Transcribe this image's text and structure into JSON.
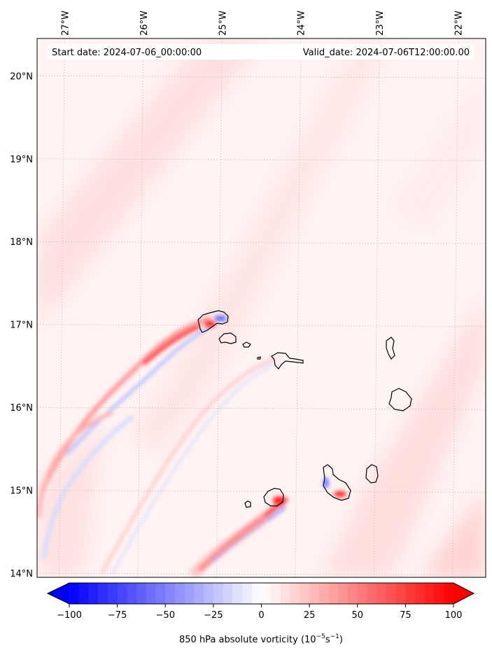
{
  "figure": {
    "start_date_label": "Start date: 2024-07-06_00:00:00",
    "valid_date_label": "Valid_date: 2024-07-06T12:00:00.00"
  },
  "map": {
    "extent": {
      "lon_min": -27.35,
      "lon_max": -21.65,
      "lat_min": 13.95,
      "lat_max": 20.45
    },
    "lon_ticks": [
      {
        "lon": -27,
        "label": "27°W"
      },
      {
        "lon": -26,
        "label": "26°W"
      },
      {
        "lon": -25,
        "label": "25°W"
      },
      {
        "lon": -24,
        "label": "24°W"
      },
      {
        "lon": -23,
        "label": "23°W"
      },
      {
        "lon": -22,
        "label": "22°W"
      }
    ],
    "lat_ticks": [
      {
        "lat": 20,
        "label": "20°N"
      },
      {
        "lat": 19,
        "label": "19°N"
      },
      {
        "lat": 18,
        "label": "18°N"
      },
      {
        "lat": 17,
        "label": "17°N"
      },
      {
        "lat": 16,
        "label": "16°N"
      },
      {
        "lat": 15,
        "label": "15°N"
      },
      {
        "lat": 14,
        "label": "14°N"
      }
    ],
    "field_name": "850 hPa absolute vorticity",
    "islands": [
      {
        "name": "Santo Antão",
        "lon": -25.15,
        "lat": 17.05
      },
      {
        "name": "São Vicente",
        "lon": -24.98,
        "lat": 16.85
      },
      {
        "name": "Santa Luzia",
        "lon": -24.75,
        "lat": 16.76
      },
      {
        "name": "Branco",
        "lon": -24.65,
        "lat": 16.66
      },
      {
        "name": "São Nicolau",
        "lon": -24.25,
        "lat": 16.6
      },
      {
        "name": "Sal",
        "lon": -22.93,
        "lat": 16.72
      },
      {
        "name": "Boa Vista",
        "lon": -22.81,
        "lat": 16.1
      },
      {
        "name": "Maio",
        "lon": -23.18,
        "lat": 15.22
      },
      {
        "name": "Santiago",
        "lon": -23.65,
        "lat": 15.08
      },
      {
        "name": "Fogo",
        "lon": -24.38,
        "lat": 14.93
      },
      {
        "name": "Brava",
        "lon": -24.72,
        "lat": 14.85
      }
    ]
  },
  "colorbar": {
    "min": -100,
    "max": 100,
    "ticks": [
      {
        "value": -100,
        "label": "−100"
      },
      {
        "value": -75,
        "label": "−75"
      },
      {
        "value": -50,
        "label": "−50"
      },
      {
        "value": -25,
        "label": "−25"
      },
      {
        "value": 0,
        "label": "0"
      },
      {
        "value": 25,
        "label": "25"
      },
      {
        "value": 50,
        "label": "50"
      },
      {
        "value": 75,
        "label": "75"
      },
      {
        "value": 100,
        "label": "100"
      }
    ],
    "label_prefix": "850 hPa absolute vorticity (10",
    "label_exp1": "−5",
    "label_mid": "s",
    "label_exp2": "−1",
    "label_suffix": ")",
    "colors": {
      "negative": "#0000ff",
      "zero": "#ffffff",
      "positive": "#ff0000"
    }
  }
}
